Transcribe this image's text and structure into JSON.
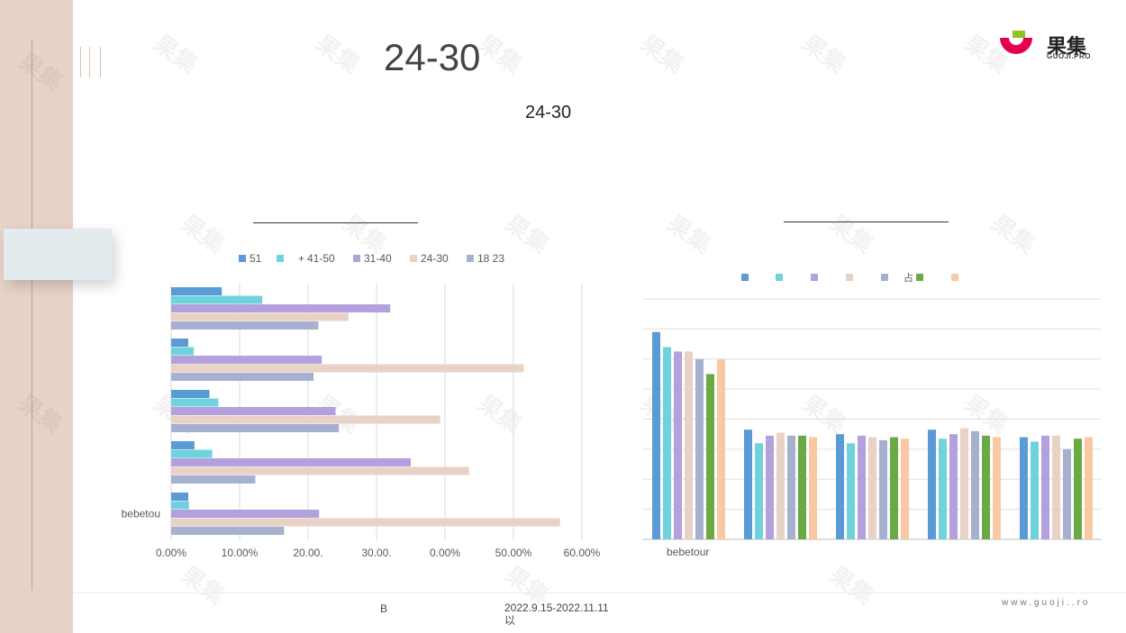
{
  "slide": {
    "title": "24-30",
    "subtitle": "24-30",
    "footer_left": "B",
    "footer_date": "2022.9.15-2022.11.11",
    "footer_date_suffix": "以",
    "footer_url": "www.guoji..ro"
  },
  "logo": {
    "text": "果集",
    "sub": "GUOJI.PRO",
    "icon": "guoji-logo-icon"
  },
  "watermark": {
    "text": "果集"
  },
  "colors": {
    "band": "#e8d3c8",
    "s51": "#5b9bd5",
    "s41_50": "#70d2dc",
    "s31_40": "#b4a0dc",
    "s24_30": "#e8d2c6",
    "s18_23": "#a6b1cf",
    "green": "#6aaa45",
    "peach": "#f8c9a2"
  },
  "chart_data": [
    {
      "type": "bar",
      "orientation": "horizontal",
      "title": "",
      "legend_position": "top",
      "grid": true,
      "categories": [
        "",
        "",
        "",
        "",
        "bebetou"
      ],
      "category_labels_shown": [
        "",
        "",
        "",
        "",
        "bebetou"
      ],
      "xlim": [
        0,
        60
      ],
      "x_ticks": [
        "0.00%",
        "10.00%",
        "20.00.",
        "30.00.",
        "0.00%",
        "50.00%",
        "60.00%"
      ],
      "series": [
        {
          "name": "51",
          "legend_label": "51",
          "color": "#5b9bd5",
          "values": [
            7.4,
            2.5,
            5.6,
            3.4,
            2.5
          ]
        },
        {
          "name": "41-50",
          "legend_label": "41-50",
          "color": "#70d2dc",
          "values": [
            13.3,
            3.3,
            6.9,
            6.0,
            2.6
          ]
        },
        {
          "name": "31-40",
          "legend_label": "31-40",
          "color": "#b4a0dc",
          "values": [
            32.0,
            22.0,
            24.0,
            35.0,
            21.6
          ]
        },
        {
          "name": "24-30",
          "legend_label": "24-30",
          "color": "#e8d2c6",
          "values": [
            25.9,
            51.5,
            39.3,
            43.5,
            56.8
          ]
        },
        {
          "name": "18 23",
          "legend_label": "18 23",
          "color": "#a6b1cf",
          "values": [
            21.5,
            20.8,
            24.5,
            12.3,
            16.5
          ]
        }
      ],
      "extra_legend_glyph": "+"
    },
    {
      "type": "bar",
      "orientation": "vertical",
      "title": "",
      "legend_position": "top",
      "grid": true,
      "categories": [
        "bebetour",
        "",
        "",
        "",
        ""
      ],
      "ylim": [
        0,
        8
      ],
      "legend_extra_text": "占",
      "series": [
        {
          "name": "",
          "color": "#5b9bd5",
          "values": [
            6.9,
            3.65,
            3.5,
            3.65,
            3.4
          ]
        },
        {
          "name": "",
          "color": "#70d2dc",
          "values": [
            6.4,
            3.2,
            3.2,
            3.35,
            3.25
          ]
        },
        {
          "name": "",
          "color": "#b4a0dc",
          "values": [
            6.25,
            3.45,
            3.45,
            3.5,
            3.45
          ]
        },
        {
          "name": "",
          "color": "#e8d2c6",
          "values": [
            6.25,
            3.55,
            3.4,
            3.7,
            3.45
          ]
        },
        {
          "name": "",
          "color": "#a6b1cf",
          "values": [
            6.0,
            3.45,
            3.3,
            3.6,
            3.0
          ]
        },
        {
          "name": "",
          "color": "#6aaa45",
          "values": [
            5.5,
            3.45,
            3.4,
            3.45,
            3.35
          ]
        },
        {
          "name": "",
          "color": "#f8c9a2",
          "values": [
            6.0,
            3.4,
            3.35,
            3.4,
            3.4
          ]
        }
      ]
    }
  ]
}
